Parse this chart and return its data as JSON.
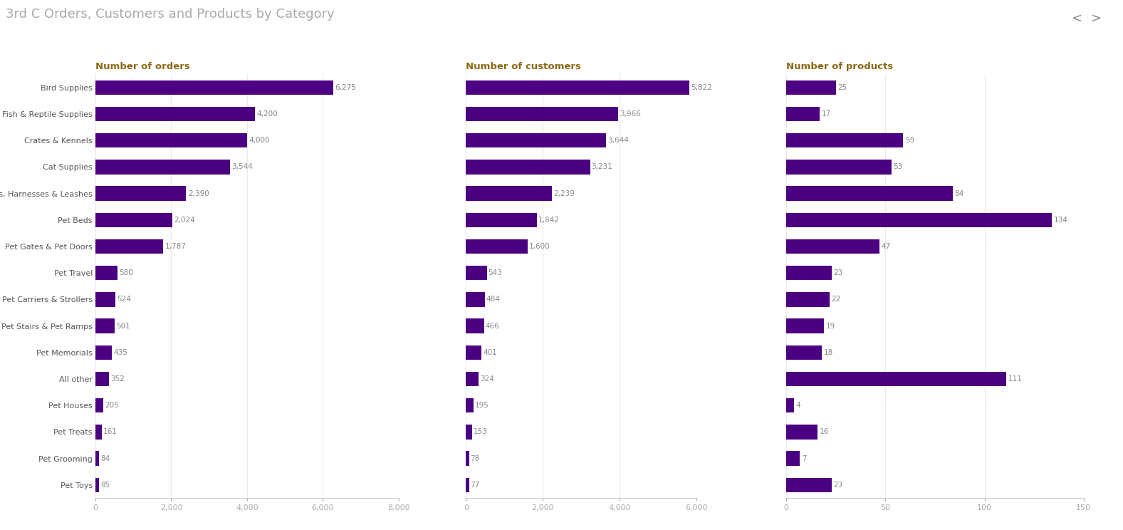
{
  "title": "3rd C Orders, Customers and Products by Category",
  "title_color": "#aaaaaa",
  "bar_color": "#4B0082",
  "bg_color": "#ffffff",
  "panel_titles": [
    "Number of orders",
    "Number of customers",
    "Number of products"
  ],
  "panel_title_color": "#8B6914",
  "categories": [
    "Bird Supplies",
    "Pet Fish & Reptile Supplies",
    "Crates & Kennels",
    "Cat Supplies",
    "Collars, Harnesses & Leashes",
    "Pet Beds",
    "Pet Gates & Pet Doors",
    "Pet Travel",
    "Pet Carriers & Strollers",
    "Pet Stairs & Pet Ramps",
    "Pet Memorials",
    "All other",
    "Pet Houses",
    "Pet Treats",
    "Pet Grooming",
    "Pet Toys"
  ],
  "orders": [
    6275,
    4200,
    4000,
    3544,
    2390,
    2024,
    1787,
    580,
    524,
    501,
    435,
    352,
    205,
    161,
    84,
    85
  ],
  "customers": [
    5822,
    3966,
    3644,
    3231,
    2239,
    1842,
    1600,
    543,
    484,
    466,
    401,
    324,
    195,
    153,
    78,
    77
  ],
  "products": [
    25,
    17,
    59,
    53,
    84,
    134,
    47,
    23,
    22,
    19,
    18,
    111,
    4,
    16,
    7,
    23
  ],
  "orders_xlim": [
    0,
    8000
  ],
  "customers_xlim": [
    0,
    6000
  ],
  "products_xlim": [
    0,
    150
  ],
  "orders_xticks": [
    0,
    2000,
    4000,
    6000,
    8000
  ],
  "customers_xticks": [
    0,
    2000,
    4000,
    6000
  ],
  "products_xticks": [
    0,
    50,
    100,
    150
  ],
  "tick_color": "#aaaaaa",
  "label_color": "#555555",
  "value_color": "#888888",
  "grid_color": "#e8e8e8",
  "bar_height": 0.55
}
